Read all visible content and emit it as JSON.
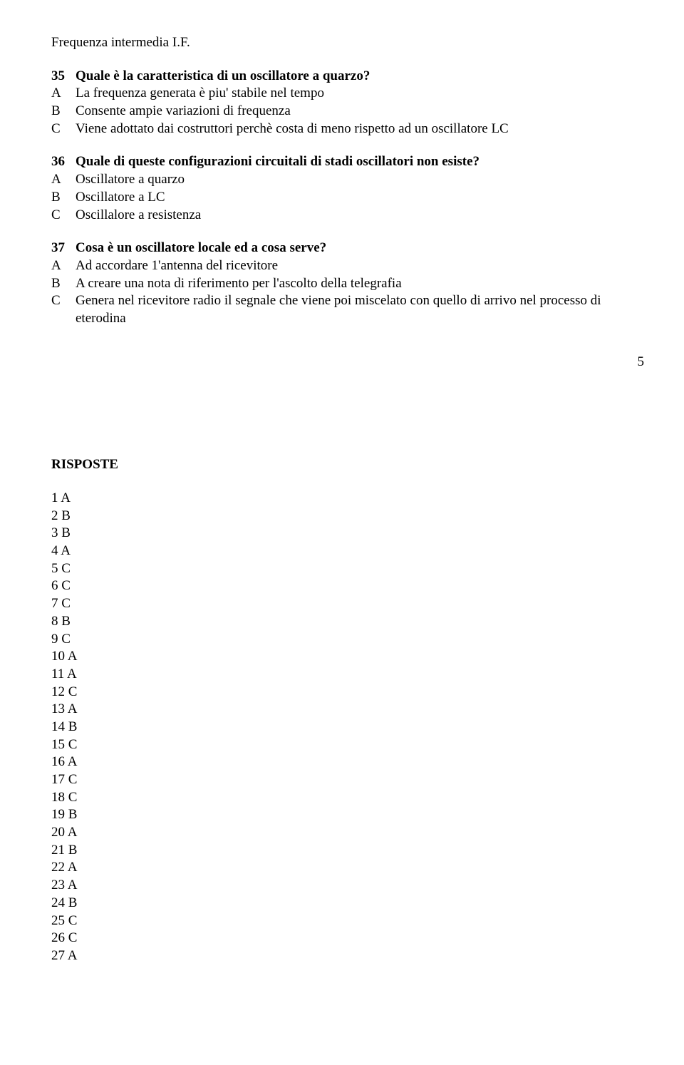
{
  "intro_line": "Frequenza intermedia I.F.",
  "questions": [
    {
      "num": "35",
      "text": "Quale è la caratteristica di un oscillatore a quarzo?",
      "opts": [
        {
          "letter": "A",
          "text": "La frequenza generata è piu' stabile nel tempo"
        },
        {
          "letter": "B",
          "text": "Consente  ampie variazioni di frequenza"
        },
        {
          "letter": "C",
          "text": "Viene adottato dai costruttori perchè costa di meno rispetto ad un oscillatore LC"
        }
      ]
    },
    {
      "num": "36",
      "text": "Quale di queste configurazioni circuitali di stadi oscillatori non esiste?",
      "opts": [
        {
          "letter": "A",
          "text": "Oscillatore a quarzo"
        },
        {
          "letter": "B",
          "text": "Oscillatore a LC"
        },
        {
          "letter": "C",
          "text": "Oscillalore a resistenza"
        }
      ]
    },
    {
      "num": "37",
      "text": "Cosa è un oscillatore locale ed a cosa serve?",
      "opts": [
        {
          "letter": "A",
          "text": "Ad accordare 1'antenna del ricevitore"
        },
        {
          "letter": "B",
          "text": "A creare una nota di riferimento per l'ascolto della telegrafia"
        },
        {
          "letter": "C",
          "text": "Genera nel ricevitore radio il segnale che viene poi miscelato con quello di arrivo nel processo di eterodina"
        }
      ]
    }
  ],
  "page_number": "5",
  "answers_title": "RISPOSTE",
  "answers": [
    "1  A",
    "2 B",
    "3  B",
    "4  A",
    "5  C",
    "6  C",
    "7  C",
    "8  B",
    "9  C",
    "10  A",
    "11  A",
    "12  C",
    "13  A",
    "14  B",
    "15  C",
    "16  A",
    "17 C",
    "18  C",
    "19  B",
    "20  A",
    "21  B",
    "22  A",
    "23  A",
    "24  B",
    "25  C",
    "26  C",
    "27  A"
  ]
}
